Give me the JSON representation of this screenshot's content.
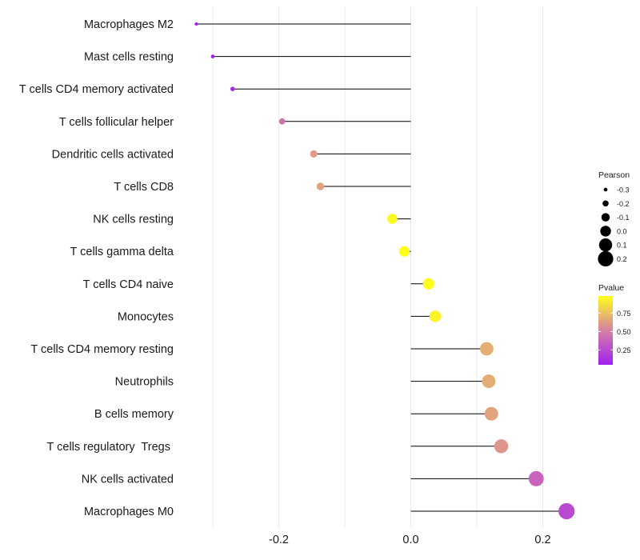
{
  "chart_data": {
    "type": "lollipop",
    "title": "",
    "xlabel": "",
    "ylabel": "",
    "xlim": [
      -0.325,
      0.245
    ],
    "xticks": [
      -0.2,
      0.0,
      0.2
    ],
    "xtick_labels": [
      "-0.2",
      "0.0",
      "0.2"
    ],
    "grid": true,
    "categories": [
      "Macrophages M2",
      "Mast cells resting",
      "T cells CD4 memory activated",
      "T cells follicular helper",
      "Dendritic cells activated",
      "T cells CD8",
      "NK cells resting",
      "T cells gamma delta",
      "T cells CD4 naive",
      "Monocytes",
      "T cells CD4 memory resting",
      "Neutrophils",
      "B cells memory",
      "T cells regulatory  Tregs ",
      "NK cells activated",
      "Macrophages M0"
    ],
    "pearson": [
      -0.325,
      -0.3,
      -0.27,
      -0.195,
      -0.147,
      -0.137,
      -0.028,
      -0.01,
      0.027,
      0.037,
      0.115,
      0.118,
      0.122,
      0.137,
      0.19,
      0.236
    ],
    "pvalue": [
      0.02,
      0.05,
      0.1,
      0.45,
      0.62,
      0.65,
      0.96,
      0.98,
      0.97,
      0.94,
      0.68,
      0.68,
      0.65,
      0.6,
      0.38,
      0.25
    ],
    "legend": {
      "size_title": "Pearson",
      "size_labels": [
        "-0.3",
        "-0.2",
        "-0.1",
        "0.0",
        "0.1",
        "0.2"
      ],
      "size_values": [
        -0.3,
        -0.2,
        -0.1,
        0.0,
        0.1,
        0.2
      ],
      "color_title": "Pvalue",
      "color_labels": [
        "0.75",
        "0.50",
        "0.25"
      ],
      "color_values": [
        0.75,
        0.5,
        0.25
      ],
      "color_range": [
        0.05,
        0.98
      ],
      "color_low": "#a020f0",
      "color_mid": "#d77fa5",
      "color_high": "#ffff1a"
    }
  }
}
